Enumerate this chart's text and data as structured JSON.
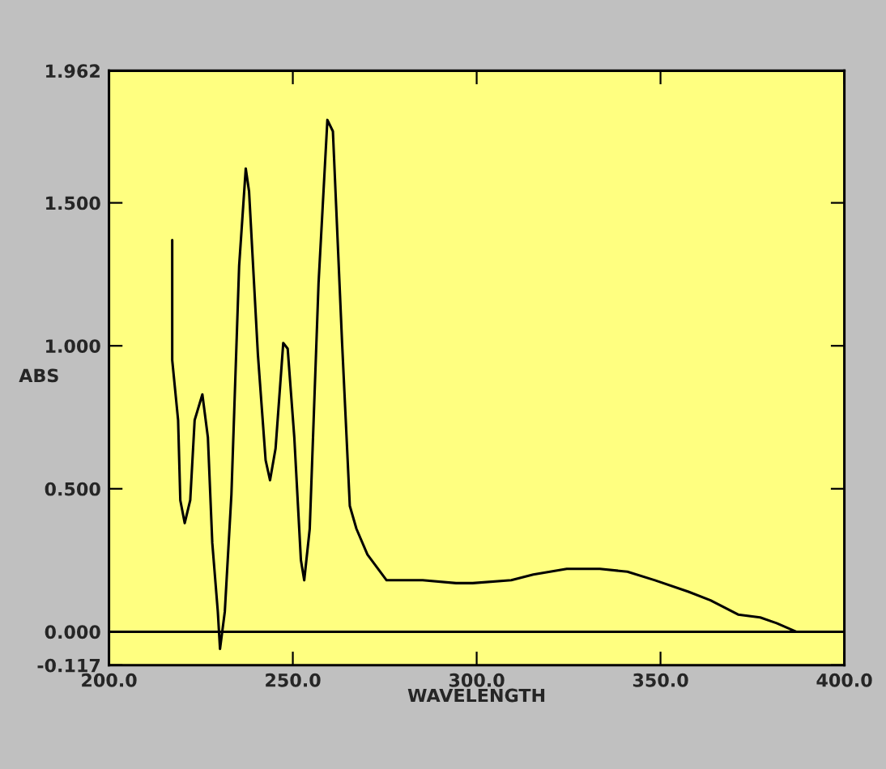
{
  "chart_data": {
    "type": "line",
    "xlabel": "WAVELENGTH",
    "ylabel": "ABS",
    "x": [
      217.2,
      217.2,
      218.8,
      219.4,
      220.6,
      222.1,
      223.3,
      225.4,
      226.9,
      228.1,
      229.6,
      230.2,
      231.5,
      233.3,
      235.4,
      237.2,
      238.1,
      240.5,
      242.6,
      243.8,
      245.3,
      247.4,
      248.6,
      250.4,
      252.2,
      253.1,
      254.6,
      257.0,
      259.4,
      260.9,
      263.4,
      265.5,
      267.3,
      270.3,
      275.5,
      285.3,
      294.4,
      298.9,
      309.4,
      315.4,
      324.5,
      333.5,
      341.0,
      348.5,
      357.6,
      363.6,
      371.1,
      377.1,
      381.6,
      386.9
    ],
    "series": [
      {
        "color": "#000000",
        "values": [
          1.37,
          0.95,
          0.74,
          0.46,
          0.38,
          0.46,
          0.74,
          0.83,
          0.68,
          0.31,
          0.07,
          -0.06,
          0.07,
          0.48,
          1.28,
          1.62,
          1.54,
          0.97,
          0.6,
          0.53,
          0.64,
          1.01,
          0.99,
          0.68,
          0.25,
          0.18,
          0.36,
          1.22,
          1.79,
          1.75,
          1.01,
          0.44,
          0.36,
          0.27,
          0.18,
          0.18,
          0.17,
          0.17,
          0.18,
          0.2,
          0.22,
          0.22,
          0.21,
          0.18,
          0.14,
          0.11,
          0.06,
          0.05,
          0.03,
          0.0
        ]
      }
    ],
    "xlim": [
      200,
      400
    ],
    "xticks": [
      {
        "value": 200,
        "label": "200.0"
      },
      {
        "value": 250,
        "label": "250.0"
      },
      {
        "value": 300,
        "label": "300.0"
      },
      {
        "value": 350,
        "label": "350.0"
      },
      {
        "value": 400,
        "label": "400.0"
      }
    ],
    "ylim": [
      -0.117,
      1.962
    ],
    "yticks": [
      {
        "value": -0.117,
        "label": "-0.117"
      },
      {
        "value": 0,
        "label": "0.000"
      },
      {
        "value": 0.5,
        "label": "0.500"
      },
      {
        "value": 1.0,
        "label": "1.000"
      },
      {
        "value": 1.5,
        "label": "1.500"
      },
      {
        "value": 1.962,
        "label": "1.962"
      }
    ],
    "ref_lines": [
      {
        "axis": "y",
        "value": 0,
        "color": "#000000"
      }
    ],
    "grid": false,
    "legend": false,
    "marker": "none",
    "line_style": "solid"
  }
}
